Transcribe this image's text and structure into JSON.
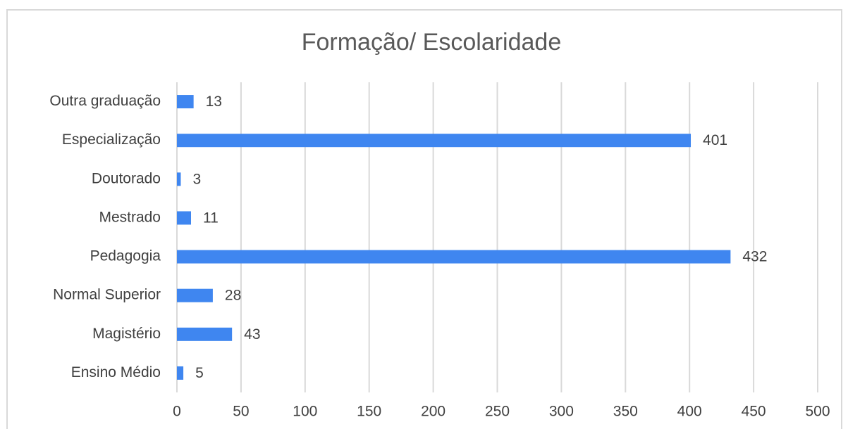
{
  "chart_data": {
    "type": "bar",
    "orientation": "horizontal",
    "title": "Formação/ Escolaridade",
    "categories": [
      "Outra graduação",
      "Especialização",
      "Doutorado",
      "Mestrado",
      "Pedagogia",
      "Normal Superior",
      "Magistério",
      "Ensino Médio"
    ],
    "values": [
      13,
      401,
      3,
      11,
      432,
      28,
      43,
      5
    ],
    "color": "#3f86f0",
    "xlim": [
      0,
      500
    ],
    "xticks": [
      0,
      50,
      100,
      150,
      200,
      250,
      300,
      350,
      400,
      450,
      500
    ],
    "grid": true
  }
}
